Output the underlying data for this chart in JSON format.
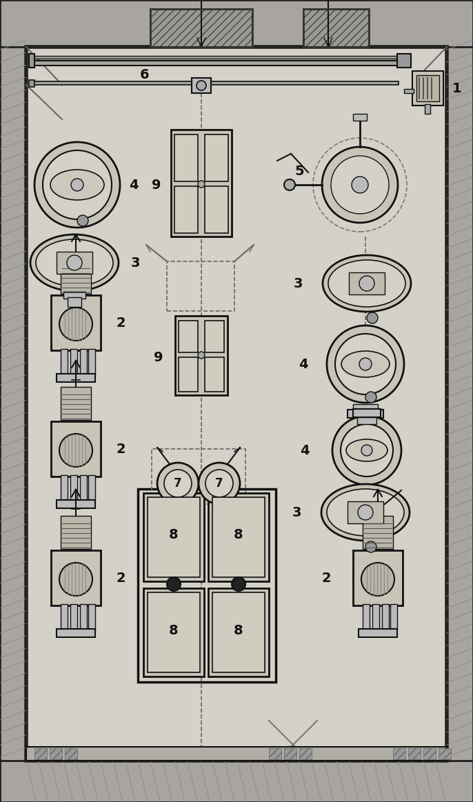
{
  "bg_color": "#b8b5b0",
  "room_bg": "#d4d1c8",
  "wall_color": "#222222",
  "line_color": "#111111",
  "figsize": [
    6.86,
    11.63
  ],
  "dpi": 100
}
